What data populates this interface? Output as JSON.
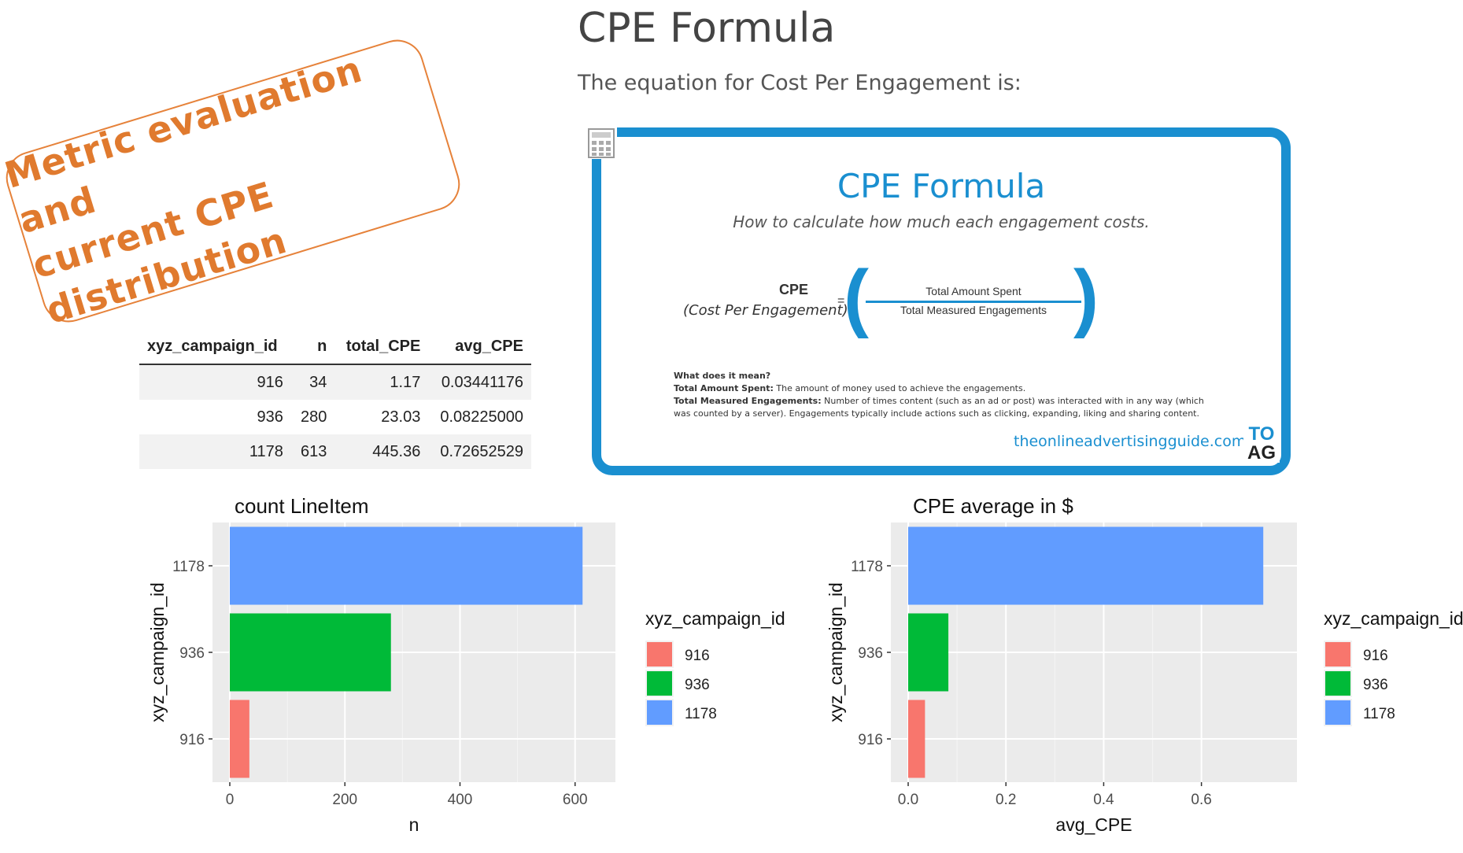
{
  "header": {
    "title": "CPE Formula",
    "subtitle": "The equation for Cost Per Engagement is:"
  },
  "stamp": {
    "line1": "Metric evaluation and",
    "line2": "current CPE distribution",
    "color": "#e07a2e"
  },
  "table": {
    "columns": [
      "xyz_campaign_id",
      "n",
      "total_CPE",
      "avg_CPE"
    ],
    "rows": [
      [
        "916",
        "34",
        "1.17",
        "0.03441176"
      ],
      [
        "936",
        "280",
        "23.03",
        "0.08225000"
      ],
      [
        "1178",
        "613",
        "445.36",
        "0.72652529"
      ]
    ]
  },
  "formula_card": {
    "icon": "calculator-icon",
    "title": "CPE Formula",
    "subtitle": "How to calculate how much each engagement costs.",
    "cpe_label": "CPE",
    "cpe_expansion": "(Cost Per Engagement)",
    "equals": "=",
    "numerator": "Total Amount Spent",
    "denominator": "Total Measured Engagements",
    "meaning_heading": "What does it mean?",
    "meaning_spent_label": "Total Amount Spent:",
    "meaning_spent_text": "The amount of money used to achieve the engagements.",
    "meaning_engagements_label": "Total Measured Engagements:",
    "meaning_engagements_text": "Number of times content (such as an ad or post) was interacted with in any way (which was counted by a server). Engagements typically include actions such as clicking, expanding, liking and sharing content.",
    "site": "theonlineadvertisingguide.com",
    "logo_top": "TO",
    "logo_bottom": "AG",
    "accent": "#1a8fd0"
  },
  "chart_data": [
    {
      "type": "bar",
      "orientation": "horizontal",
      "title": "count LineItem",
      "xlabel": "n",
      "ylabel": "xyz_campaign_id",
      "categories": [
        "916",
        "936",
        "1178"
      ],
      "values": [
        34,
        280,
        613
      ],
      "colors": [
        "#F8766D",
        "#00BA38",
        "#619CFF"
      ],
      "xlim": [
        0,
        640
      ],
      "xticks": [
        0,
        200,
        400,
        600
      ],
      "xtick_labels": [
        "0",
        "200",
        "400",
        "600"
      ],
      "grid": true,
      "legend": {
        "title": "xyz_campaign_id",
        "entries": [
          "916",
          "936",
          "1178"
        ],
        "placement": "right"
      }
    },
    {
      "type": "bar",
      "orientation": "horizontal",
      "title": "CPE average in $",
      "xlabel": "avg_CPE",
      "ylabel": "xyz_campaign_id",
      "categories": [
        "916",
        "936",
        "1178"
      ],
      "values": [
        0.03441176,
        0.08225,
        0.72652529
      ],
      "colors": [
        "#F8766D",
        "#00BA38",
        "#619CFF"
      ],
      "xlim": [
        0,
        0.76
      ],
      "xticks": [
        0,
        0.2,
        0.4,
        0.6
      ],
      "xtick_labels": [
        "0.0",
        "0.2",
        "0.4",
        "0.6"
      ],
      "grid": true,
      "legend": {
        "title": "xyz_campaign_id",
        "entries": [
          "916",
          "936",
          "1178"
        ],
        "placement": "right"
      }
    }
  ]
}
